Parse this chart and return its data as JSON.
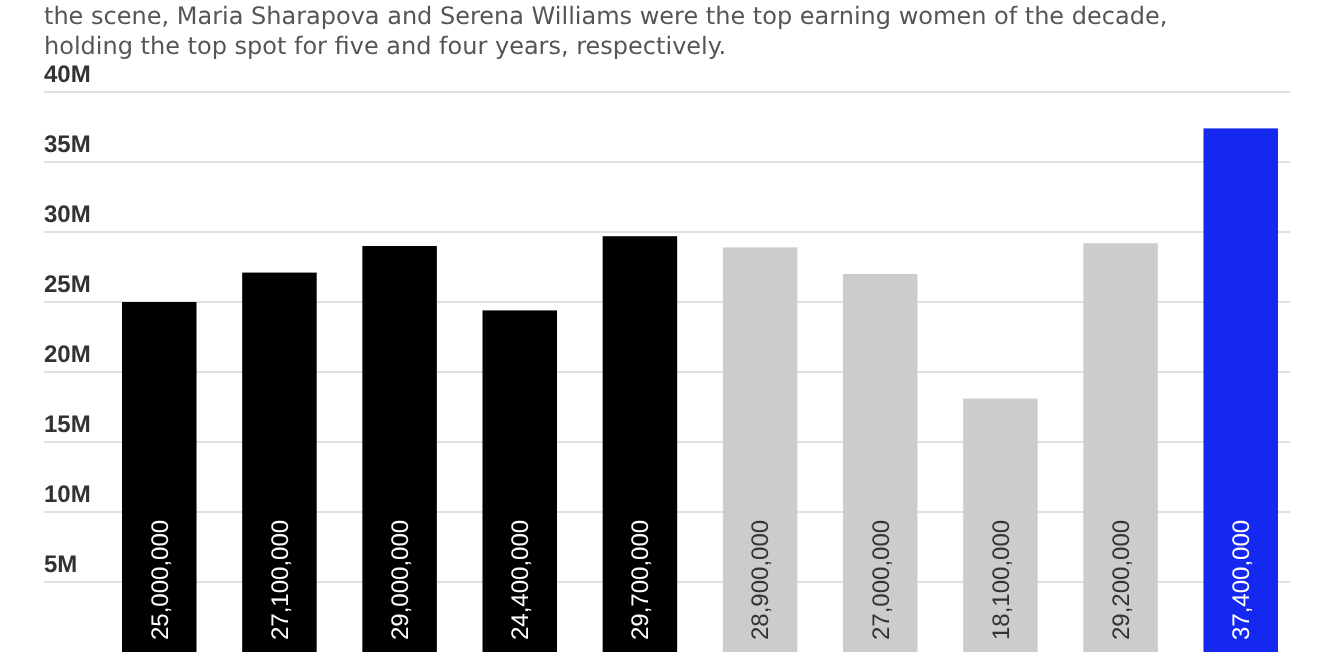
{
  "chart_data": {
    "type": "bar",
    "subtitle": "the scene, Maria Sharapova and Serena Williams were the top earning women of the decade, holding the top spot for five and four years, respectively.",
    "categories": [
      null,
      null,
      null,
      null,
      null,
      null,
      null,
      null,
      null,
      null
    ],
    "values": [
      25000000,
      27100000,
      29000000,
      24400000,
      29700000,
      28900000,
      27000000,
      18100000,
      29200000,
      37400000
    ],
    "colors": [
      "#000000",
      "#000000",
      "#000000",
      "#000000",
      "#000000",
      "#cccccc",
      "#cccccc",
      "#cccccc",
      "#cccccc",
      "#1428f0"
    ],
    "ylim": [
      0,
      40000000
    ],
    "yticks": [
      {
        "value": 5000000,
        "label": "5M"
      },
      {
        "value": 10000000,
        "label": "10M"
      },
      {
        "value": 15000000,
        "label": "15M"
      },
      {
        "value": 20000000,
        "label": "20M"
      },
      {
        "value": 25000000,
        "label": "25M"
      },
      {
        "value": 30000000,
        "label": "30M"
      },
      {
        "value": 35000000,
        "label": "35M"
      },
      {
        "value": 40000000,
        "label": "40M"
      }
    ],
    "value_labels": [
      "25,000,000",
      "27,100,000",
      "29,000,000",
      "24,400,000",
      "29,700,000",
      "28,900,000",
      "27,000,000",
      "18,100,000",
      "29,200,000",
      "37,400,000"
    ],
    "grid": "y"
  }
}
